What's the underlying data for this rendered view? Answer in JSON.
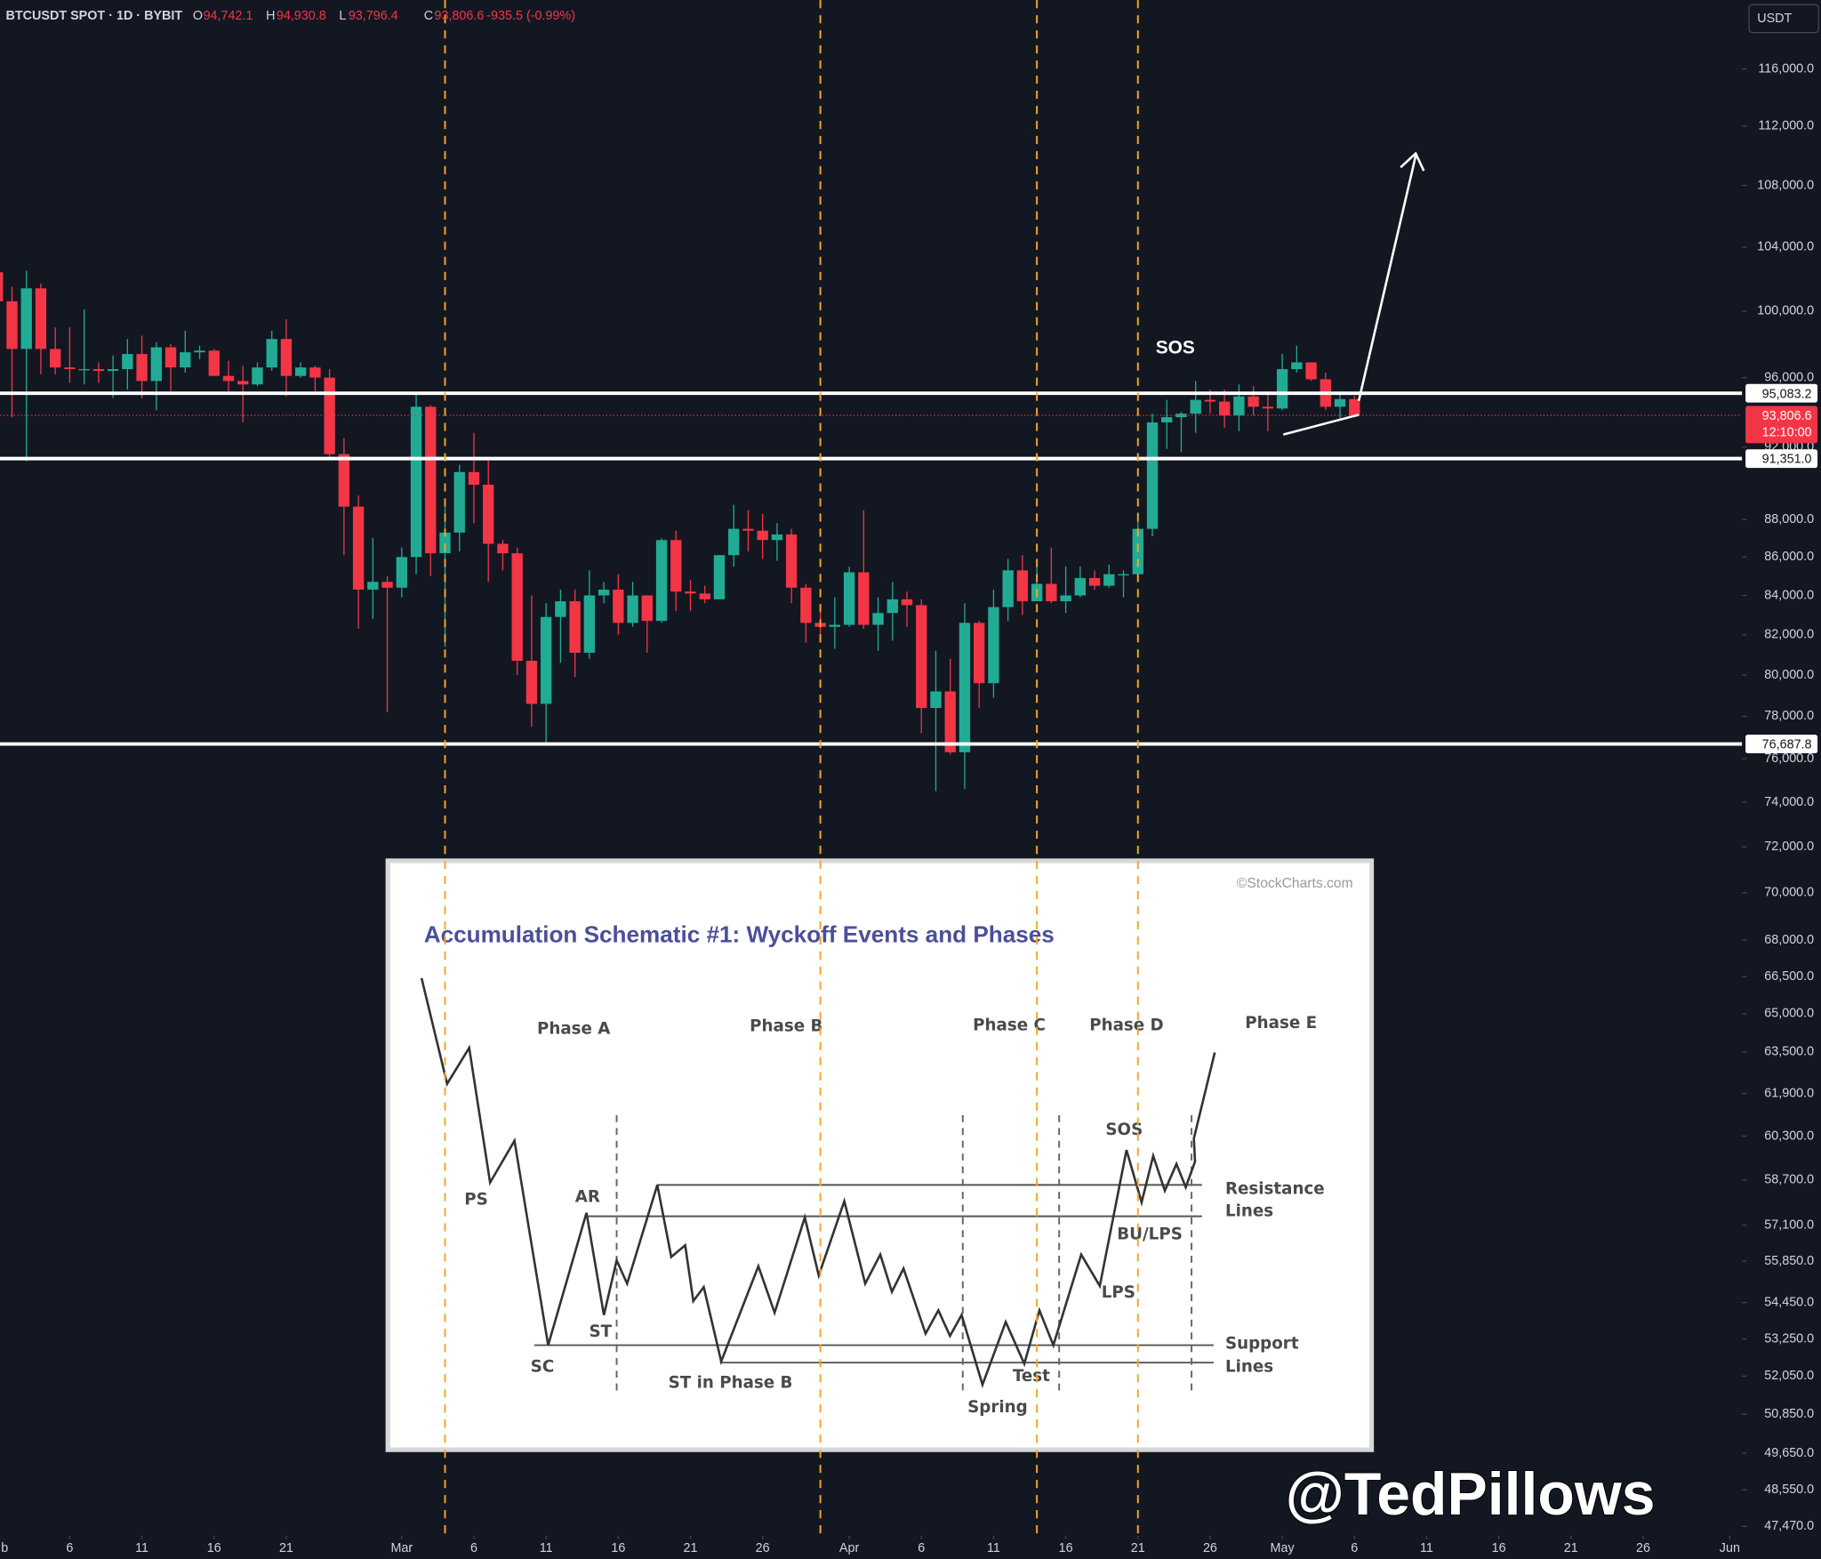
{
  "chart_data": {
    "type": "candlestick",
    "title": "BTCUSDT SPOT · 1D · BYBIT",
    "ohlc_keys": [
      "O",
      "H",
      "L",
      "C"
    ],
    "last_labels": {
      "open": "94,742.1",
      "high": "94,930.8",
      "low": "93,796.4",
      "close": "93,806.6",
      "change": "-935.5 (-0.99%)"
    },
    "currency": "USDT",
    "log": true,
    "grid": false,
    "up_color": "#22ab94",
    "down_color": "#f23645",
    "x": [
      0,
      1,
      2,
      3,
      4,
      5,
      6,
      7,
      8,
      9,
      10,
      11,
      12,
      13,
      14,
      15,
      16,
      17,
      18,
      19,
      20,
      21,
      22,
      23,
      24,
      25,
      26,
      27,
      28,
      29,
      30,
      31,
      32,
      33,
      34,
      35,
      36,
      37,
      38,
      39,
      40,
      41,
      42,
      43,
      44,
      45,
      46,
      47,
      48,
      49,
      50,
      51,
      52,
      53,
      54,
      55,
      56,
      57,
      58,
      59,
      60,
      61,
      62,
      63,
      64,
      65,
      66,
      67,
      68,
      69,
      70,
      71,
      72,
      73,
      74,
      75,
      76,
      77,
      78,
      79,
      80,
      81,
      82,
      83,
      84,
      85,
      86,
      87,
      88,
      89,
      90,
      91,
      92,
      93,
      94
    ],
    "open": [
      102400,
      100600,
      97700,
      101400,
      97700,
      96600,
      96500,
      96500,
      96400,
      96500,
      97400,
      95800,
      97800,
      96600,
      97500,
      97600,
      96100,
      95800,
      95600,
      96600,
      98300,
      96100,
      96600,
      96000,
      91600,
      88700,
      84300,
      84700,
      84400,
      86000,
      94300,
      86200,
      87300,
      90600,
      89900,
      86700,
      86200,
      80700,
      78600,
      82900,
      83700,
      81100,
      84000,
      84300,
      82600,
      84000,
      82700,
      86900,
      84200,
      84100,
      83800,
      86100,
      87500,
      87400,
      86900,
      87200,
      84400,
      82600,
      82400,
      82500,
      85200,
      82500,
      83100,
      83800,
      83500,
      78400,
      79200,
      76300,
      82600,
      79600,
      83400,
      85300,
      83700,
      84600,
      83700,
      84000,
      84900,
      84500,
      85100,
      85100,
      87500,
      93400,
      93700,
      93900,
      94700,
      94600,
      93800,
      94900,
      94300,
      94200,
      96500,
      96900,
      95900,
      94300,
      94742.1
    ],
    "high": [
      102800,
      101500,
      102500,
      101700,
      99000,
      99000,
      100100,
      96900,
      97300,
      98300,
      98500,
      98100,
      98000,
      98800,
      97900,
      97700,
      97000,
      96700,
      96900,
      98800,
      99500,
      96900,
      96700,
      96500,
      92500,
      89300,
      87000,
      85000,
      86500,
      95000,
      94400,
      88900,
      91000,
      92800,
      91300,
      86900,
      86500,
      84000,
      83600,
      84300,
      84300,
      85300,
      84700,
      85100,
      84700,
      84000,
      87000,
      87400,
      84800,
      84500,
      86100,
      88800,
      88500,
      88300,
      87800,
      87500,
      84600,
      83500,
      83900,
      85500,
      88500,
      83900,
      84700,
      84200,
      83800,
      81200,
      80800,
      83600,
      82700,
      84300,
      85900,
      86100,
      85800,
      86500,
      85500,
      85500,
      85300,
      85600,
      85300,
      88400,
      93900,
      94700,
      94000,
      95800,
      95300,
      95300,
      95600,
      95500,
      95200,
      97400,
      97900,
      96900,
      96300,
      95200,
      94930.8
    ],
    "low": [
      100300,
      93700,
      91200,
      96200,
      96200,
      95700,
      95600,
      95700,
      94800,
      95300,
      94800,
      94100,
      95200,
      96300,
      97100,
      96100,
      95200,
      93400,
      95500,
      96400,
      94900,
      96000,
      95200,
      91300,
      86100,
      82300,
      82800,
      78200,
      83900,
      85100,
      85000,
      81400,
      86300,
      87800,
      84700,
      85300,
      80000,
      77500,
      76600,
      80600,
      79900,
      80800,
      83600,
      82000,
      82400,
      81100,
      82600,
      83200,
      83200,
      83600,
      83800,
      85500,
      86300,
      85900,
      85800,
      83600,
      81600,
      81600,
      81300,
      82400,
      82300,
      81200,
      81700,
      82400,
      77200,
      74500,
      76200,
      74600,
      78400,
      78900,
      82700,
      83000,
      83700,
      83600,
      83100,
      83900,
      84300,
      84400,
      83900,
      85100,
      87100,
      91900,
      91700,
      92800,
      93900,
      93100,
      92900,
      93800,
      92900,
      94100,
      96300,
      95800,
      94100,
      93500,
      93796.4
    ],
    "close": [
      100600,
      97700,
      101400,
      97700,
      96600,
      96500,
      96500,
      96400,
      96500,
      97400,
      95800,
      97800,
      96600,
      97500,
      97600,
      96100,
      95800,
      95600,
      96600,
      98300,
      96100,
      96600,
      96000,
      91600,
      88700,
      84300,
      84700,
      84400,
      86000,
      94300,
      86200,
      87300,
      90600,
      89900,
      86700,
      86200,
      80700,
      78600,
      82900,
      83700,
      81100,
      84000,
      84300,
      82600,
      84000,
      82700,
      86900,
      84200,
      84100,
      83800,
      86100,
      87500,
      87400,
      86900,
      87200,
      84400,
      82600,
      82400,
      82500,
      85200,
      82500,
      83100,
      83800,
      83500,
      78400,
      79200,
      76300,
      82600,
      79600,
      83400,
      85300,
      83700,
      84600,
      83700,
      84000,
      84900,
      84500,
      85100,
      85100,
      87500,
      93400,
      93700,
      93900,
      94700,
      94600,
      93800,
      94900,
      94300,
      94200,
      96500,
      96900,
      95900,
      94300,
      94742.1,
      93806.6
    ],
    "xlim": [
      0.17,
      120.85
    ],
    "xticks": [
      {
        "value": 0,
        "label": "b"
      },
      {
        "value": 5,
        "label": "6"
      },
      {
        "value": 10,
        "label": "11"
      },
      {
        "value": 15,
        "label": "16"
      },
      {
        "value": 20,
        "label": "21"
      },
      {
        "value": 28,
        "label": "Mar"
      },
      {
        "value": 33,
        "label": "6"
      },
      {
        "value": 38,
        "label": "11"
      },
      {
        "value": 43,
        "label": "16"
      },
      {
        "value": 48,
        "label": "21"
      },
      {
        "value": 53,
        "label": "26"
      },
      {
        "value": 59,
        "label": "Apr"
      },
      {
        "value": 64,
        "label": "6"
      },
      {
        "value": 69,
        "label": "11"
      },
      {
        "value": 74,
        "label": "16"
      },
      {
        "value": 79,
        "label": "21"
      },
      {
        "value": 84,
        "label": "26"
      },
      {
        "value": 89,
        "label": "May"
      },
      {
        "value": 94,
        "label": "6"
      },
      {
        "value": 99,
        "label": "11"
      },
      {
        "value": 104,
        "label": "16"
      },
      {
        "value": 109,
        "label": "21"
      },
      {
        "value": 114,
        "label": "26"
      },
      {
        "value": 120,
        "label": "Jun"
      }
    ],
    "ylim": [
      47200,
      121000
    ],
    "yticks": [
      {
        "value": 116000,
        "label": "116,000.0"
      },
      {
        "value": 112000,
        "label": "112,000.0"
      },
      {
        "value": 108000,
        "label": "108,000.0"
      },
      {
        "value": 104000,
        "label": "104,000.0"
      },
      {
        "value": 100000,
        "label": "100,000.0"
      },
      {
        "value": 96000,
        "label": "96,000.0"
      },
      {
        "value": 92000,
        "label": "92,000.0"
      },
      {
        "value": 88000,
        "label": "88,000.0"
      },
      {
        "value": 86000,
        "label": "86,000.0"
      },
      {
        "value": 84000,
        "label": "84,000.0"
      },
      {
        "value": 82000,
        "label": "82,000.0"
      },
      {
        "value": 80000,
        "label": "80,000.0"
      },
      {
        "value": 78000,
        "label": "78,000.0"
      },
      {
        "value": 76000,
        "label": "76,000.0"
      },
      {
        "value": 74000,
        "label": "74,000.0"
      },
      {
        "value": 72000,
        "label": "72,000.0"
      },
      {
        "value": 70000,
        "label": "70,000.0"
      },
      {
        "value": 68000,
        "label": "68,000.0"
      },
      {
        "value": 66500,
        "label": "66,500.0"
      },
      {
        "value": 65000,
        "label": "65,000.0"
      },
      {
        "value": 63500,
        "label": "63,500.0"
      },
      {
        "value": 61900,
        "label": "61,900.0"
      },
      {
        "value": 60300,
        "label": "60,300.0"
      },
      {
        "value": 58700,
        "label": "58,700.0"
      },
      {
        "value": 57100,
        "label": "57,100.0"
      },
      {
        "value": 55850,
        "label": "55,850.0"
      },
      {
        "value": 54450,
        "label": "54,450.0"
      },
      {
        "value": 53250,
        "label": "53,250.0"
      },
      {
        "value": 52050,
        "label": "52,050.0"
      },
      {
        "value": 50850,
        "label": "50,850.0"
      },
      {
        "value": 49650,
        "label": "49,650.0"
      },
      {
        "value": 48550,
        "label": "48,550.0"
      },
      {
        "value": 47470,
        "label": "47,470.0"
      }
    ],
    "price_lines": [
      {
        "value": 95083.2,
        "label": "95,083.2"
      },
      {
        "value": 91351.0,
        "label": "91,351.0"
      },
      {
        "value": 76687.8,
        "label": "76,687.8"
      }
    ],
    "last_price": {
      "value": 93806.6,
      "label": "93,806.6",
      "countdown": "12:10:00"
    },
    "vlines": [
      31,
      57,
      72,
      79
    ],
    "vline_color": "#f5a623",
    "annotation": "SOS"
  },
  "inset": {
    "credit": "©StockCharts.com",
    "title": "Accumulation Schematic #1: Wyckoff Events and Phases",
    "phases": [
      "Phase A",
      "Phase B",
      "Phase C",
      "Phase D",
      "Phase E"
    ],
    "events": [
      "PS",
      "SC",
      "AR",
      "ST",
      "ST in Phase B",
      "Spring",
      "Test",
      "SOS",
      "BU/LPS",
      "LPS"
    ],
    "resistance": [
      "Resistance",
      "Lines"
    ],
    "support": [
      "Support",
      "Lines"
    ]
  },
  "watermark": "@TedPillows"
}
